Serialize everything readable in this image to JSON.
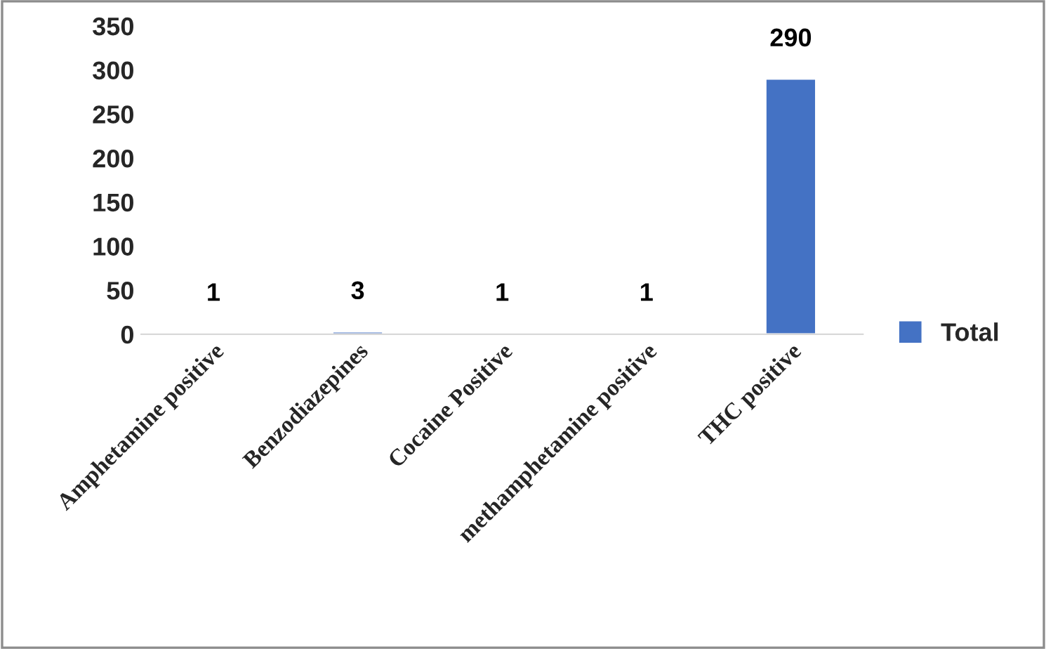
{
  "chart_data": {
    "type": "bar",
    "categories": [
      "Amphetamine positive",
      "Benzodiazepines",
      "Cocaine Positive",
      "methamphetamine positive",
      "THC positive"
    ],
    "series": [
      {
        "name": "Total",
        "color": "#4472c4",
        "values": [
          1,
          3,
          1,
          1,
          290
        ]
      }
    ],
    "ylim": [
      0,
      350
    ],
    "yticks": [
      0,
      50,
      100,
      150,
      200,
      250,
      300,
      350
    ],
    "data_labels": true,
    "legend": "right",
    "grid": false
  }
}
